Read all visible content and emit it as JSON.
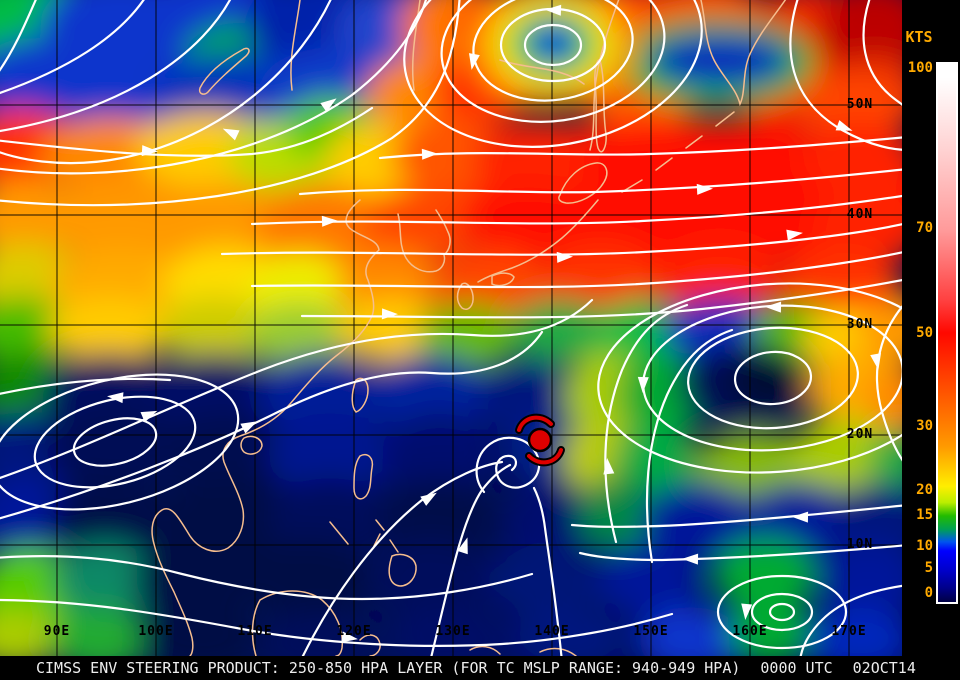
{
  "product": {
    "caption_main": "CIMSS ENV STEERING PRODUCT: 250-850 HPA LAYER (FOR TC MSLP RANGE: 940-949 HPA)",
    "caption_time": "0000 UTC",
    "caption_date": "02OCT14"
  },
  "colorbar": {
    "unit_label": "KTS",
    "tick_labels": [
      "100",
      "70",
      "50",
      "30",
      "20",
      "15",
      "10",
      "5",
      "0"
    ],
    "scale_colors": {
      "100": "#ffffff",
      "70": "#ff9a9a",
      "50": "#ff0800",
      "30": "#ff6600",
      "20": "#ffee00",
      "15": "#22bb00",
      "10": "#0000ff",
      "5": "#0000cc",
      "0": "#000044"
    }
  },
  "map": {
    "lat_labels": [
      "50N",
      "40N",
      "30N",
      "20N",
      "10N"
    ],
    "lon_labels": [
      "90E",
      "100E",
      "110E",
      "120E",
      "130E",
      "140E",
      "150E",
      "160E",
      "170E"
    ],
    "tc_marker": {
      "icon": "hurricane-icon",
      "fill": "#dd0000",
      "outline": "#000000"
    }
  },
  "colors": {
    "panel_background": "#000000",
    "streamline": "#ffffff",
    "coastline": "#f5bd8e",
    "grid_line": "#000000",
    "grid_label": "#000000",
    "colorbar_label": "#ffaa00",
    "caption_text": "#ededed"
  }
}
